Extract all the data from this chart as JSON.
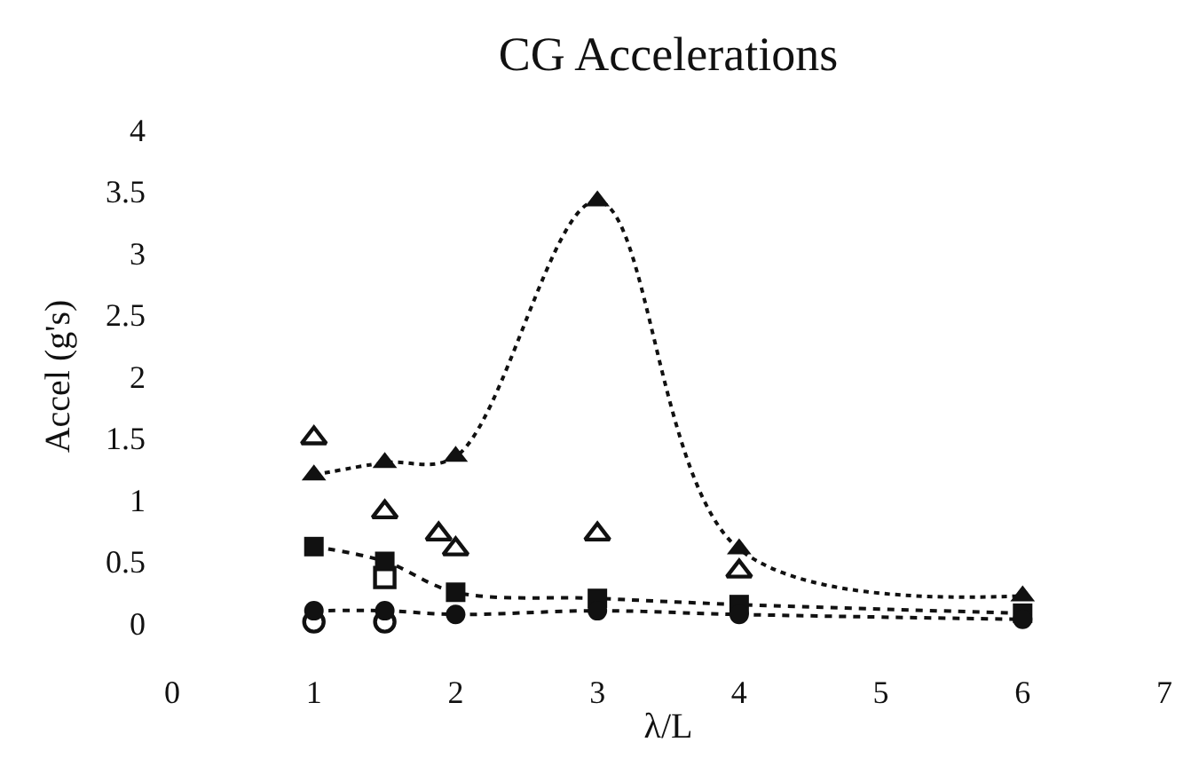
{
  "chart_data": {
    "type": "line",
    "title": "CG Accelerations",
    "xlabel": "λ/L",
    "ylabel": "Accel (g's)",
    "xlim": [
      0,
      7
    ],
    "xticks": [
      0,
      1,
      2,
      3,
      4,
      5,
      6,
      7
    ],
    "ylim": [
      0,
      4
    ],
    "yticks": [
      0,
      0.5,
      1,
      1.5,
      2,
      2.5,
      3,
      3.5,
      4
    ],
    "series": [
      {
        "color": "#111111",
        "marker": "triangle",
        "line_style": "dotted",
        "x": [
          1,
          1.5,
          2,
          3,
          4,
          6
        ],
        "values": [
          1.2,
          1.3,
          1.35,
          3.42,
          0.6,
          0.22
        ]
      },
      {
        "type": "scatter",
        "color": "#111111",
        "marker": "triangle-open",
        "x": [
          1,
          1.5,
          1.88,
          2,
          3,
          4
        ],
        "values": [
          1.5,
          0.9,
          0.72,
          0.6,
          0.72,
          0.42
        ]
      },
      {
        "type": "scatter",
        "color": "#111111",
        "marker": "square-open",
        "x": [
          1.5
        ],
        "values": [
          0.37
        ]
      },
      {
        "color": "#111111",
        "marker": "square",
        "line_style": "dashed",
        "x": [
          1,
          1.5,
          2,
          3,
          4,
          6
        ],
        "values": [
          0.62,
          0.5,
          0.25,
          0.2,
          0.15,
          0.08
        ]
      },
      {
        "type": "scatter",
        "color": "#111111",
        "marker": "circle-open",
        "x": [
          1,
          1.5
        ],
        "values": [
          0.01,
          0.01
        ]
      },
      {
        "color": "#111111",
        "marker": "circle",
        "line_style": "dashed",
        "x": [
          1,
          1.5,
          2,
          3,
          4,
          6
        ],
        "values": [
          0.1,
          0.1,
          0.07,
          0.1,
          0.07,
          0.03
        ]
      }
    ]
  }
}
